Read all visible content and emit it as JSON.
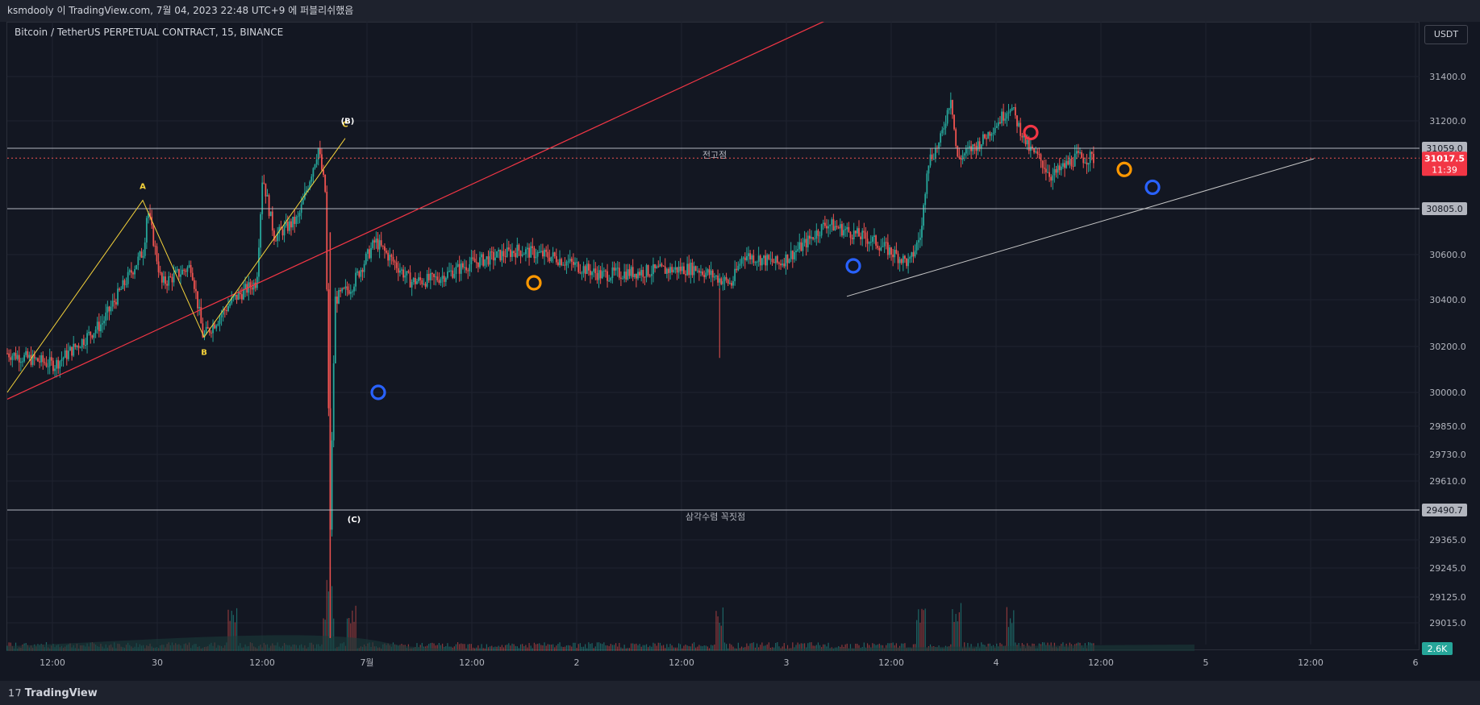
{
  "caption": "ksmdooly 이 TradingView.com, 7월 04, 2023 22:48 UTC+9 에 퍼블리쉬했음",
  "symbol_title": "Bitcoin / TetherUS PERPETUAL CONTRACT, 15, BINANCE",
  "currency": "USDT",
  "brand": "TradingView",
  "colors": {
    "background": "#131722",
    "up": "#26a69a",
    "down": "#ef5350",
    "trendline_red": "#f23645",
    "wave_yellow": "#f5d33b",
    "circle_blue": "#2962ff",
    "circle_orange": "#ff9800",
    "circle_red": "#f23645",
    "hline": "#b2b5be"
  },
  "chart_data": {
    "type": "candlestick",
    "interval": "15",
    "x_tick_labels": [
      "12:00",
      "30",
      "12:00",
      "7월",
      "12:00",
      "2",
      "12:00",
      "3",
      "12:00",
      "4",
      "12:00",
      "5",
      "12:00",
      "6"
    ],
    "y_tick_labels": [
      "31400.0",
      "31200.0",
      "30600.0",
      "30400.0",
      "30200.0",
      "30000.0",
      "29850.0",
      "29730.0",
      "29610.0",
      "29365.0",
      "29245.0",
      "29125.0",
      "29015.0"
    ],
    "last_price": "31017.5",
    "countdown": "11:39",
    "volume_label": "2.6K",
    "horizontal_levels": [
      {
        "value": "31059.0",
        "label": "전고점"
      },
      {
        "value": "30805.0",
        "label": ""
      },
      {
        "value": "29490.7",
        "label": "삼각수렴 꼭짓점"
      }
    ],
    "wave_labels": [
      "A",
      "B",
      "C",
      "(B)",
      "(C)"
    ],
    "price_path": [
      [
        0,
        30170
      ],
      [
        0.04,
        30120
      ],
      [
        0.08,
        30300
      ],
      [
        0.115,
        30620
      ],
      [
        0.118,
        30810
      ],
      [
        0.13,
        30470
      ],
      [
        0.155,
        30550
      ],
      [
        0.165,
        30240
      ],
      [
        0.19,
        30400
      ],
      [
        0.21,
        30480
      ],
      [
        0.215,
        30950
      ],
      [
        0.225,
        30680
      ],
      [
        0.245,
        30760
      ],
      [
        0.262,
        31060
      ],
      [
        0.268,
        30870
      ],
      [
        0.27,
        30150
      ],
      [
        0.272,
        29400
      ],
      [
        0.276,
        30400
      ],
      [
        0.29,
        30460
      ],
      [
        0.31,
        30660
      ],
      [
        0.34,
        30480
      ],
      [
        0.36,
        30490
      ],
      [
        0.39,
        30560
      ],
      [
        0.43,
        30620
      ],
      [
        0.46,
        30590
      ],
      [
        0.5,
        30510
      ],
      [
        0.55,
        30530
      ],
      [
        0.58,
        30540
      ],
      [
        0.61,
        30470
      ],
      [
        0.62,
        30600
      ],
      [
        0.65,
        30560
      ],
      [
        0.67,
        30640
      ],
      [
        0.69,
        30740
      ],
      [
        0.73,
        30660
      ],
      [
        0.76,
        30560
      ],
      [
        0.77,
        30700
      ],
      [
        0.775,
        31000
      ],
      [
        0.785,
        31080
      ],
      [
        0.795,
        31320
      ],
      [
        0.8,
        31010
      ],
      [
        0.82,
        31090
      ],
      [
        0.845,
        31270
      ],
      [
        0.86,
        31060
      ],
      [
        0.87,
        31010
      ],
      [
        0.88,
        30940
      ],
      [
        0.9,
        31020
      ],
      [
        0.915,
        31017
      ]
    ],
    "volume_spikes": [
      0.19,
      0.27,
      0.272,
      0.29,
      0.6,
      0.77,
      0.8,
      0.845
    ]
  }
}
